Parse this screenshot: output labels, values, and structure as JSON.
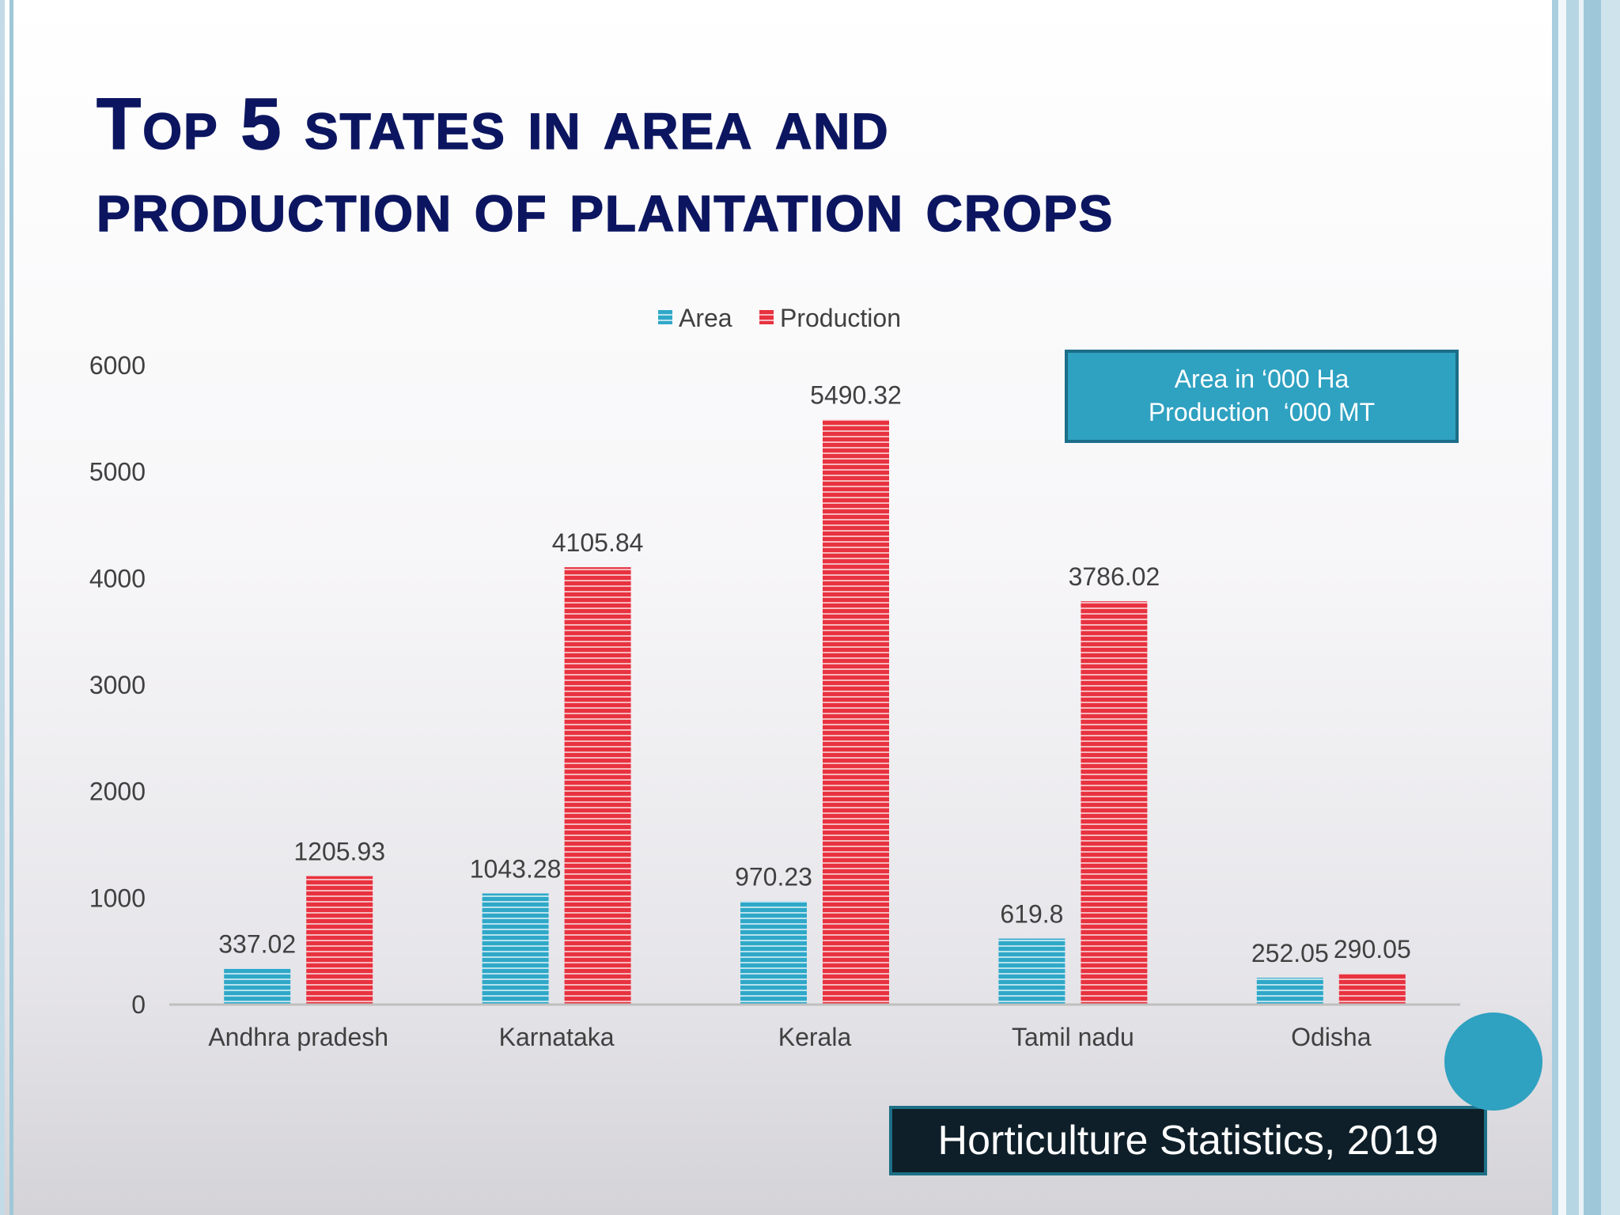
{
  "slide": {
    "title_line1": "Top 5 states in area and",
    "title_line2": "production of plantation crops",
    "units_line1": "Area in ‘000 Ha",
    "units_line2": "Production  ‘000 MT",
    "source": "Horticulture Statistics, 2019",
    "colors": {
      "title": "#0c1660",
      "accent": "#2fa1c1",
      "source_bg": "#0e1f29"
    }
  },
  "chart_data": {
    "type": "bar",
    "categories": [
      "Andhra pradesh",
      "Karnataka",
      "Kerala",
      "Tamil nadu",
      "Odisha"
    ],
    "series": [
      {
        "name": "Area",
        "color": "#2fa8c8",
        "values": [
          337.02,
          1043.28,
          970.23,
          619.8,
          252.05
        ]
      },
      {
        "name": "Production",
        "color": "#e8323f",
        "values": [
          1205.93,
          4105.84,
          5490.32,
          3786.02,
          290.05
        ]
      }
    ],
    "data_labels": [
      [
        "337.02",
        "1043.28",
        "970.23",
        "619.8",
        "252.05"
      ],
      [
        "1205.93",
        "4105.84",
        "5490.32",
        "3786.02",
        "290.05"
      ]
    ],
    "yticks": [
      "0",
      "1000",
      "2000",
      "3000",
      "4000",
      "5000",
      "6000"
    ],
    "ylim": [
      0,
      6000
    ],
    "legend_position": "top-center",
    "grid": false
  }
}
